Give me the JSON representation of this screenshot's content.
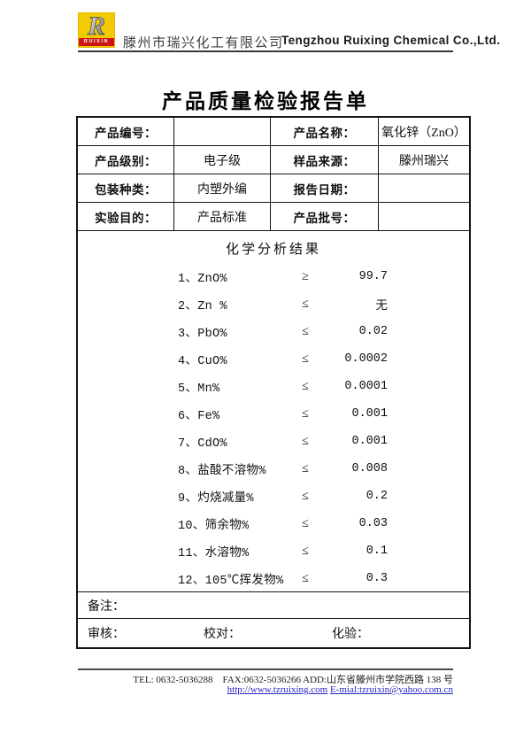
{
  "header": {
    "logo": {
      "letter": "R",
      "brand": "RUIXIN",
      "yellow": "#f2cb05",
      "red": "#cc1410"
    },
    "company_cn": "滕州市瑞兴化工有限公司",
    "company_en": "Tengzhou Ruixing Chemical Co.,Ltd."
  },
  "title": "产品质量检验报告单",
  "info_table": {
    "rows": [
      {
        "label1": "产品编号：",
        "value1": "",
        "label2": "产品名称：",
        "value2": "氧化锌（ZnO）"
      },
      {
        "label1": "产品级别：",
        "value1": "电子级",
        "label2": "样品来源：",
        "value2": "滕州瑞兴"
      },
      {
        "label1": "包装种类：",
        "value1": "内塑外编",
        "label2": "报告日期：",
        "value2": ""
      },
      {
        "label1": "实验目的：",
        "value1": "产品标准",
        "label2": "产品批号：",
        "value2": ""
      }
    ]
  },
  "analysis": {
    "title": "化学分析结果",
    "items": [
      {
        "name": "1、ZnO%",
        "relation": "≥",
        "value": "99.7"
      },
      {
        "name": "2、Zn %",
        "relation": "≤",
        "value": "无"
      },
      {
        "name": "3、PbO%",
        "relation": "≤",
        "value": "0.02"
      },
      {
        "name": "4、CuO%",
        "relation": "≤",
        "value": "0.0002"
      },
      {
        "name": "5、Mn%",
        "relation": "≤",
        "value": "0.0001"
      },
      {
        "name": "6、Fe%",
        "relation": "≤",
        "value": "0.001"
      },
      {
        "name": "7、CdO%",
        "relation": "≤",
        "value": "0.001"
      },
      {
        "name": "8、盐酸不溶物%",
        "relation": "≤",
        "value": "0.008"
      },
      {
        "name": "9、灼烧减量%",
        "relation": "≤",
        "value": "0.2"
      },
      {
        "name": "10、筛余物%",
        "relation": "≤",
        "value": "0.03"
      },
      {
        "name": "11、水溶物%",
        "relation": "≤",
        "value": "0.1"
      },
      {
        "name": "12、105℃挥发物%",
        "relation": "≤",
        "value": "0.3"
      }
    ]
  },
  "remarks_label": "备注：",
  "signoff": {
    "review": "审核：",
    "proofread": "校对：",
    "assay": "化验："
  },
  "footer": {
    "contact_line": "TEL: 0632-5036288    FAX:0632-5036266 ADD:山东省滕州市学院西路 138 号",
    "website": "http://www.tzruixing.com",
    "email": "E-mial:tzruixin@yahoo.com.cn",
    "link_color": "#2626c4"
  }
}
